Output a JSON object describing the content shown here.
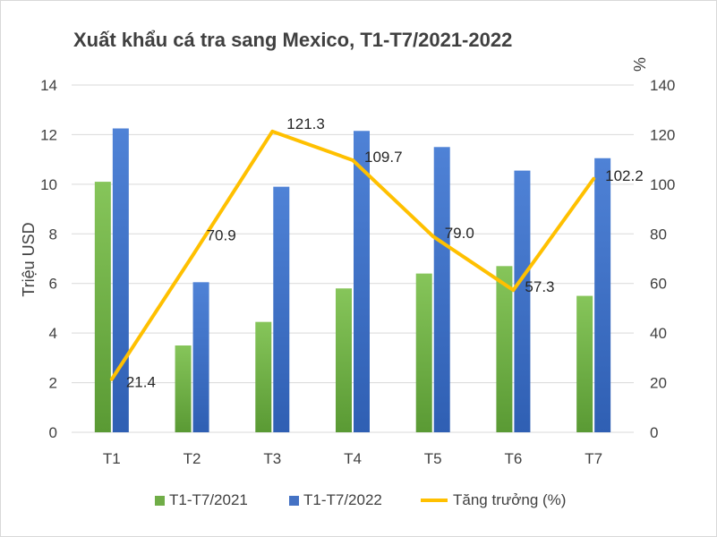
{
  "chart_data": {
    "type": "bar",
    "title": "Xuất khẩu cá tra sang Mexico, T1-T7/2021-2022",
    "ylabel": "Triệu USD",
    "y2label": "%",
    "categories": [
      "T1",
      "T2",
      "T3",
      "T4",
      "T5",
      "T6",
      "T7"
    ],
    "ylim": [
      0,
      14
    ],
    "y2lim": [
      0,
      140
    ],
    "yticks": [
      "0",
      "2",
      "4",
      "6",
      "8",
      "10",
      "12",
      "14"
    ],
    "y2ticks": [
      "0",
      "20",
      "40",
      "60",
      "80",
      "100",
      "120",
      "140"
    ],
    "grid": true,
    "legend_position": "bottom",
    "series": [
      {
        "name": "T1-T7/2021",
        "type": "bar",
        "axis": "left",
        "color": "#70ad47",
        "values": [
          10.1,
          3.5,
          4.45,
          5.8,
          6.4,
          6.7,
          5.5
        ]
      },
      {
        "name": "T1-T7/2022",
        "type": "bar",
        "axis": "left",
        "color": "#4472c4",
        "values": [
          12.25,
          6.05,
          9.9,
          12.15,
          11.5,
          10.55,
          11.05
        ]
      },
      {
        "name": "Tăng trưởng (%)",
        "type": "line",
        "axis": "right",
        "color": "#ffc000",
        "values": [
          21.4,
          70.9,
          121.3,
          109.7,
          79.0,
          57.3,
          102.2
        ],
        "labels": [
          "21.4",
          "70.9",
          "121.3",
          "109.7",
          "79.0",
          "57.3",
          "102.2"
        ]
      }
    ]
  }
}
